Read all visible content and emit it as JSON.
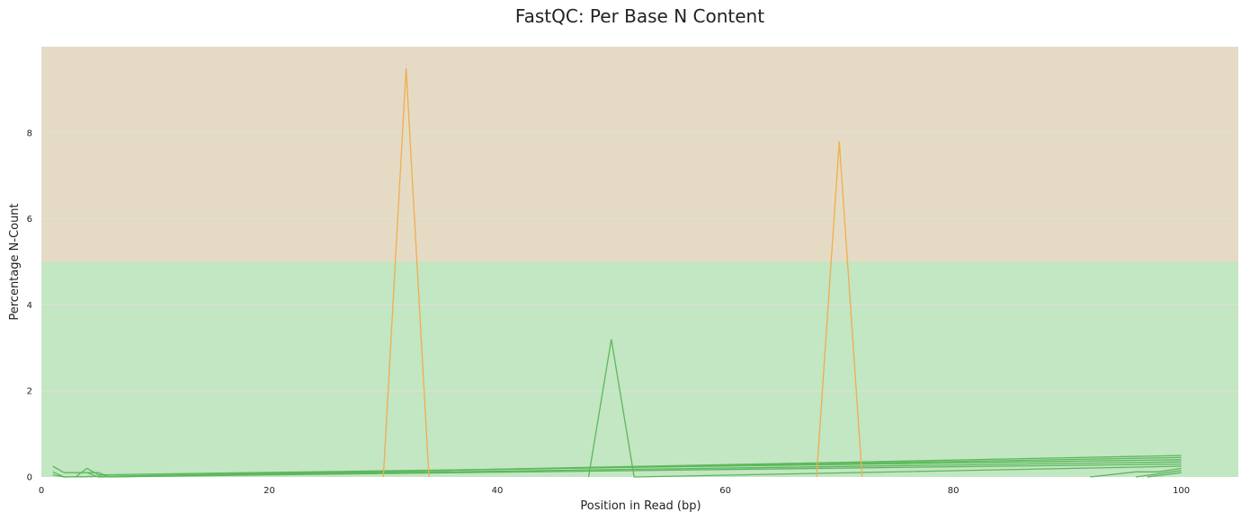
{
  "chart_data": {
    "type": "line",
    "title": "FastQC: Per Base N Content",
    "xlabel": "Position in Read (bp)",
    "ylabel": "Percentage N-Count",
    "xlim": [
      0,
      105
    ],
    "ylim": [
      0,
      10
    ],
    "xticks": [
      0,
      20,
      40,
      60,
      80,
      100
    ],
    "yticks": [
      0,
      2,
      4,
      6,
      8
    ],
    "grid": true,
    "bands": [
      {
        "from": 0,
        "to": 5,
        "color": "#c3e6c3"
      },
      {
        "from": 5,
        "to": 10,
        "color": "#e5dbc4"
      }
    ],
    "colors": {
      "pass": "#5cb85c",
      "warn": "#f0ad4e",
      "grid": "#e0e0e0"
    },
    "series": [
      {
        "status": "pass",
        "x": [
          1,
          2,
          3,
          4,
          5,
          6,
          100
        ],
        "y": [
          0.25,
          0.1,
          0.1,
          0.1,
          0.1,
          0.0,
          0.5
        ]
      },
      {
        "status": "pass",
        "x": [
          1,
          2,
          100
        ],
        "y": [
          0.12,
          0.0,
          0.45
        ]
      },
      {
        "status": "pass",
        "x": [
          3,
          4,
          5,
          100
        ],
        "y": [
          0.0,
          0.2,
          0.05,
          0.4
        ]
      },
      {
        "status": "pass",
        "x": [
          1,
          2,
          100
        ],
        "y": [
          0.05,
          0.0,
          0.35
        ]
      },
      {
        "status": "pass",
        "x": [
          4,
          5,
          100
        ],
        "y": [
          0.1,
          0.0,
          0.3
        ]
      },
      {
        "status": "pass",
        "x": [
          48,
          50,
          52,
          100
        ],
        "y": [
          0.0,
          3.2,
          0.0,
          0.25
        ]
      },
      {
        "status": "pass",
        "x": [
          92,
          96,
          98,
          100
        ],
        "y": [
          0.0,
          0.12,
          0.12,
          0.2
        ]
      },
      {
        "status": "pass",
        "x": [
          96,
          100
        ],
        "y": [
          0.0,
          0.15
        ]
      },
      {
        "status": "pass",
        "x": [
          97,
          100
        ],
        "y": [
          0.0,
          0.1
        ]
      },
      {
        "status": "warn",
        "x": [
          30,
          32,
          34
        ],
        "y": [
          0.0,
          9.5,
          0.0
        ]
      },
      {
        "status": "warn",
        "x": [
          68,
          70,
          72
        ],
        "y": [
          0.0,
          7.8,
          0.0
        ]
      }
    ]
  }
}
